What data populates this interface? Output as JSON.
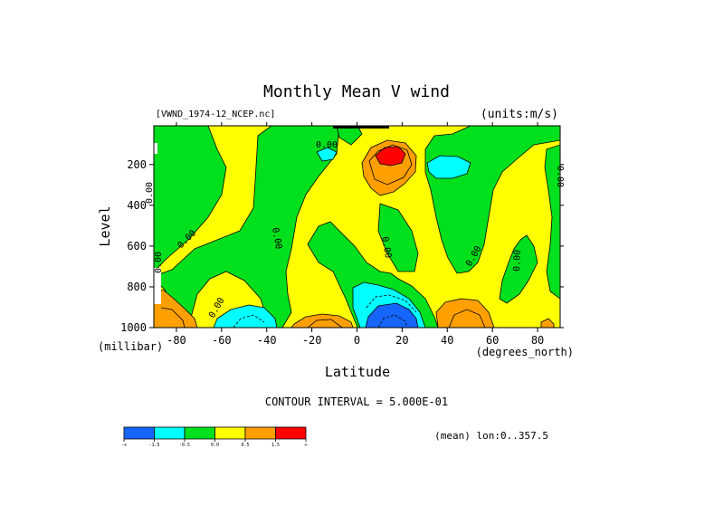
{
  "chart_data": {
    "type": "contour",
    "title": "Monthly Mean V wind",
    "dataset_label": "[VWND_1974-12_NCEP.nc]",
    "units_label": "(units:m/s)",
    "xlabel": "Latitude",
    "ylabel": "Level",
    "x_units_label": "(degrees_north)",
    "y_units_label": "(millibar)",
    "xlim": [
      -90,
      90
    ],
    "ylim": [
      1000,
      10
    ],
    "x_ticks": [
      -80,
      -60,
      -40,
      -20,
      0,
      20,
      40,
      60,
      80
    ],
    "x_tick_labels": [
      "-80",
      "-60",
      "-40",
      "-20",
      "0",
      "20",
      "40",
      "60",
      "80"
    ],
    "y_ticks": [
      200,
      400,
      600,
      800,
      1000
    ],
    "y_tick_labels": [
      "200",
      "400",
      "600",
      "800",
      "1000"
    ],
    "contour_interval_label": "CONTOUR INTERVAL = 5.000E-01",
    "contour_labels": [
      "0.00",
      "0.00",
      "0.00",
      "0.00",
      "0.00",
      "0.00",
      "0.00",
      "0.00",
      "0.00",
      "0.00"
    ],
    "footer_note": "(mean) lon:0..357.5",
    "colorbar": {
      "colors": [
        "#1565ff",
        "#00ffff",
        "#00e01c",
        "#ffff00",
        "#ff9f00",
        "#ff0000"
      ],
      "labels": [
        "-∞",
        "-1.5",
        "-0.5",
        "0.0",
        "0.5",
        "1.5",
        "∞"
      ]
    }
  }
}
